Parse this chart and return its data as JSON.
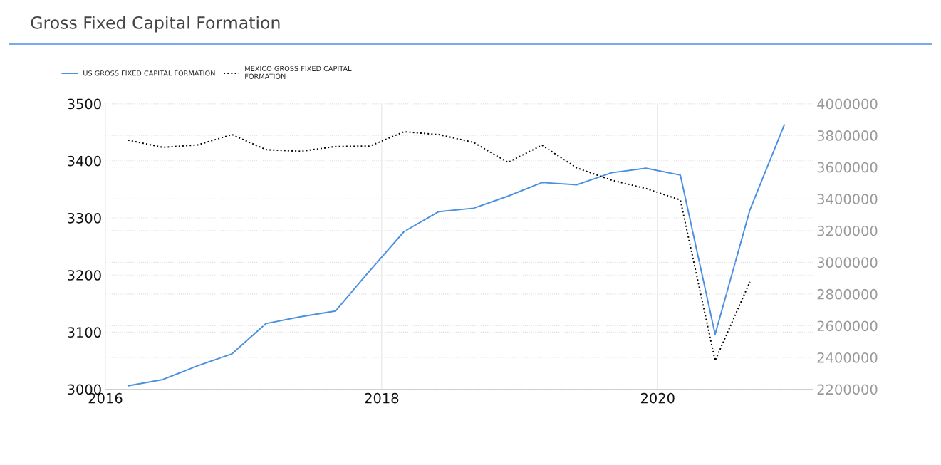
{
  "chart_data": {
    "type": "line",
    "title": "Gross Fixed Capital Formation",
    "x": [
      "2016-03",
      "2016-06",
      "2016-09",
      "2016-12",
      "2017-03",
      "2017-06",
      "2017-09",
      "2017-12",
      "2018-03",
      "2018-06",
      "2018-09",
      "2018-12",
      "2019-03",
      "2019-06",
      "2019-09",
      "2019-12",
      "2020-03",
      "2020-06",
      "2020-09",
      "2020-12"
    ],
    "series": [
      {
        "name": "US GROSS FIXED CAPITAL FORMATION",
        "color": "#4a90e2",
        "line_style": "solid",
        "values": [
          3006,
          3017,
          3041,
          3062,
          3115,
          3127,
          3137,
          3208,
          3276,
          3311,
          3317,
          3338,
          3362,
          3358,
          3379,
          3387,
          3375,
          3096,
          3314,
          3463
        ]
      },
      {
        "name": "MEXICO GROSS FIXED CAPITAL FORMATION",
        "color": "#000000",
        "line_style": "dotted",
        "axis": "y2",
        "values": [
          3770000,
          3725000,
          3740000,
          3805000,
          3710000,
          3700000,
          3730000,
          3733000,
          3823000,
          3805000,
          3756000,
          3630000,
          3738000,
          3595000,
          3518000,
          3465000,
          3393000,
          2380000,
          2877000,
          null
        ]
      }
    ],
    "xlim": [
      "2016-01",
      "2021-02-15"
    ],
    "xticks": [
      {
        "value": "2016",
        "label": "2016"
      },
      {
        "value": "2018",
        "label": "2018"
      },
      {
        "value": "2020",
        "label": "2020"
      }
    ],
    "ylim": [
      3000,
      3500
    ],
    "yticks": [
      3000,
      3100,
      3200,
      3300,
      3400,
      3500
    ],
    "y2lim": [
      2200000,
      4000000
    ],
    "y2ticks": [
      2200000,
      2400000,
      2600000,
      2800000,
      3000000,
      3200000,
      3400000,
      3600000,
      3800000,
      4000000
    ],
    "grid": true,
    "legend": "top left",
    "marker": "none"
  }
}
